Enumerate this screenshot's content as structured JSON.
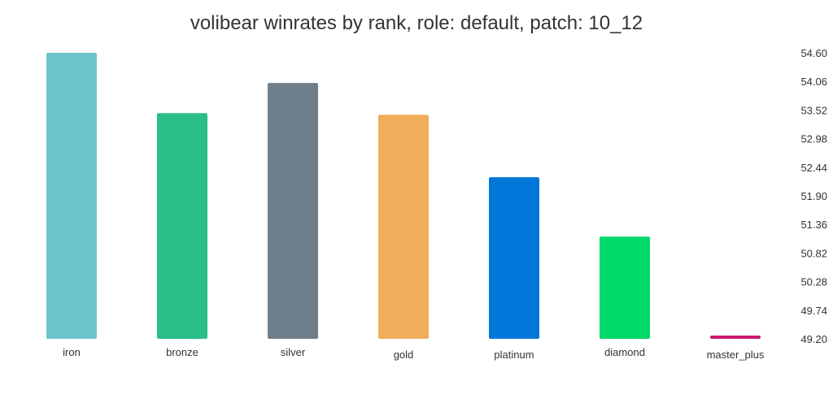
{
  "chart_data": {
    "type": "bar",
    "title": "volibear winrates by rank, role: default, patch: 10_12",
    "xlabel": "",
    "ylabel": "",
    "categories": [
      "iron",
      "bronze",
      "silver",
      "gold",
      "platinum",
      "diamond",
      "master_plus"
    ],
    "values": [
      54.6,
      53.46,
      54.03,
      53.43,
      52.25,
      51.13,
      49.2
    ],
    "colors": [
      "#6cc3ca",
      "#2bbf88",
      "#6e7f8b",
      "#f0ad5c",
      "#0077d9",
      "#00d96a",
      "#c6186f"
    ],
    "yticks": [
      "54.60",
      "54.06",
      "53.52",
      "52.98",
      "52.44",
      "51.90",
      "51.36",
      "50.82",
      "50.28",
      "49.74",
      "49.20"
    ],
    "ylim": [
      49.2,
      54.6
    ],
    "yaxis_position": "right",
    "grid": false,
    "legend": "none"
  }
}
